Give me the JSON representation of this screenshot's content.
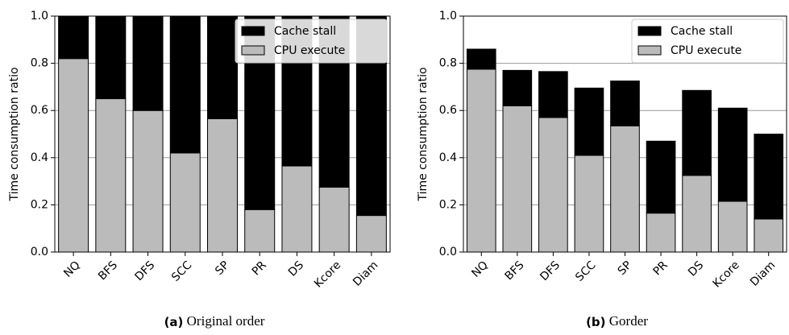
{
  "chart_data": [
    {
      "type": "stacked_bar",
      "caption_label": "(a)",
      "caption": "Original order",
      "y_label": "Time consumption ratio",
      "categories": [
        "NQ",
        "BFS",
        "DFS",
        "SCC",
        "SP",
        "PR",
        "DS",
        "Kcore",
        "Diam"
      ],
      "series": [
        {
          "name": "Cache stall",
          "color": "#000000",
          "values": [
            0.18,
            0.35,
            0.4,
            0.58,
            0.435,
            0.82,
            0.635,
            0.725,
            0.845
          ]
        },
        {
          "name": "CPU execute",
          "color": "#bbbbbb",
          "values": [
            0.82,
            0.65,
            0.6,
            0.42,
            0.565,
            0.18,
            0.365,
            0.275,
            0.155
          ]
        }
      ],
      "ylim": [
        0,
        1.0
      ],
      "yticks": [
        {
          "value": 0,
          "label": "0.0"
        },
        0.2,
        0.4,
        0.6,
        0.8,
        {
          "value": 1,
          "label": "1.0"
        }
      ],
      "grid": true,
      "legend": "upper right"
    },
    {
      "type": "stacked_bar",
      "caption_label": "(b)",
      "caption": "Gorder",
      "y_label": "Time consumption ratio",
      "categories": [
        "NQ",
        "BFS",
        "DFS",
        "SCC",
        "SP",
        "PR",
        "DS",
        "Kcore",
        "Diam"
      ],
      "series": [
        {
          "name": "Cache stall",
          "color": "#000000",
          "values": [
            0.085,
            0.15,
            0.195,
            0.285,
            0.19,
            0.305,
            0.36,
            0.395,
            0.36
          ]
        },
        {
          "name": "CPU execute",
          "color": "#bbbbbb",
          "values": [
            0.775,
            0.62,
            0.57,
            0.41,
            0.535,
            0.165,
            0.325,
            0.215,
            0.14
          ]
        }
      ],
      "ylim": [
        0,
        1.0
      ],
      "yticks": [
        {
          "value": 0,
          "label": "0.0"
        },
        0.2,
        0.4,
        0.6,
        0.8,
        {
          "value": 1,
          "label": "1.0"
        }
      ],
      "grid": true,
      "legend": "upper right"
    }
  ]
}
